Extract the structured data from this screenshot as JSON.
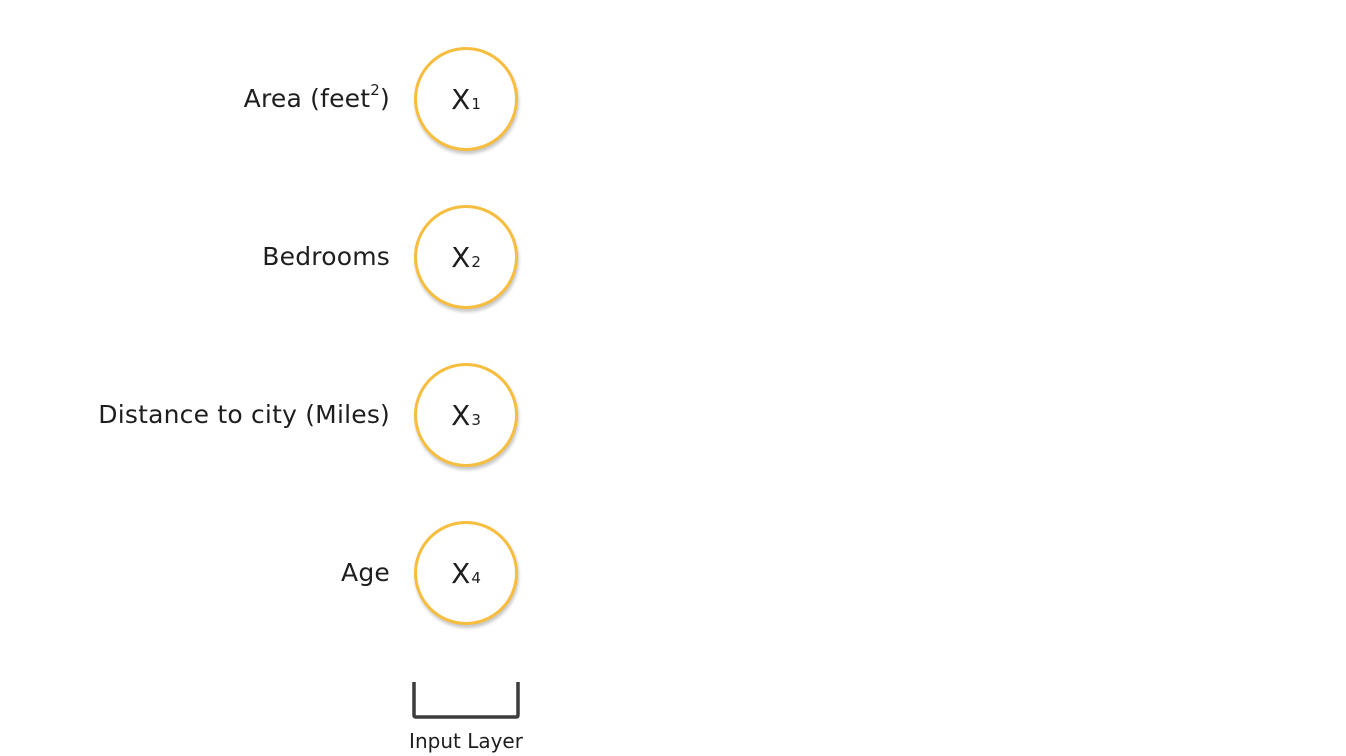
{
  "features": [
    {
      "label": "Area (feet",
      "label_sup": "2",
      "label_suffix": ")",
      "node_var": "X",
      "node_sub": "1"
    },
    {
      "label": "Bedrooms",
      "label_sup": "",
      "label_suffix": "",
      "node_var": "X",
      "node_sub": "2"
    },
    {
      "label": "Distance to city (Miles)",
      "label_sup": "",
      "label_suffix": "",
      "node_var": "X",
      "node_sub": "3"
    },
    {
      "label": "Age",
      "label_sup": "",
      "label_suffix": "",
      "node_var": "X",
      "node_sub": "4"
    }
  ],
  "layer_label": "Input Layer",
  "colors": {
    "node_border": "#f7bd3e",
    "bracket": "#3c3c3c",
    "text": "#1e1e1e"
  }
}
